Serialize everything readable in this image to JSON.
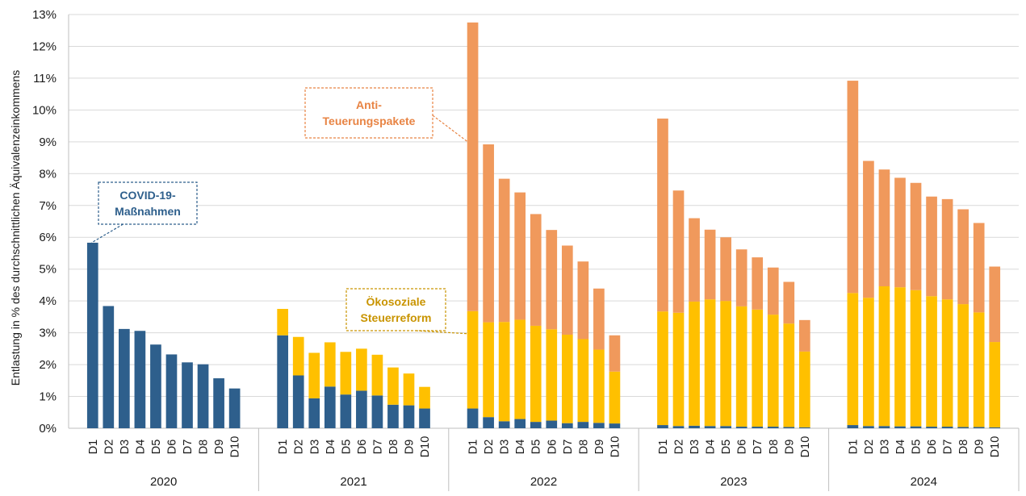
{
  "chart_data": {
    "type": "bar",
    "stacked": true,
    "ylabel": "Entlastung in % des durchschnittlichen Äquivalenzeinkommens",
    "ylim": [
      0,
      13
    ],
    "yticks": [
      "0%",
      "1%",
      "2%",
      "3%",
      "4%",
      "5%",
      "6%",
      "7%",
      "8%",
      "9%",
      "10%",
      "11%",
      "12%",
      "13%"
    ],
    "grid": true,
    "categories": [
      "D1",
      "D2",
      "D3",
      "D4",
      "D5",
      "D6",
      "D7",
      "D8",
      "D9",
      "D10"
    ],
    "groups": [
      "2020",
      "2021",
      "2022",
      "2023",
      "2024"
    ],
    "colors": {
      "covid": "#2E5F8C",
      "oeko": "#FFC000",
      "anti": "#F0995C",
      "covid_text": "#2E5F8C",
      "oeko_text": "#C99400",
      "anti_text": "#E88444"
    },
    "series": [
      {
        "name": "COVID-19-Maßnahmen",
        "key": "covid",
        "values": {
          "2020": [
            5.83,
            3.84,
            3.12,
            3.06,
            2.63,
            2.32,
            2.07,
            2.01,
            1.57,
            1.25
          ],
          "2021": [
            2.92,
            1.66,
            0.94,
            1.31,
            1.06,
            1.18,
            1.03,
            0.74,
            0.72,
            0.62
          ],
          "2022": [
            0.62,
            0.35,
            0.22,
            0.29,
            0.2,
            0.24,
            0.16,
            0.2,
            0.17,
            0.15
          ],
          "2023": [
            0.1,
            0.07,
            0.08,
            0.07,
            0.07,
            0.05,
            0.05,
            0.05,
            0.04,
            0.03
          ],
          "2024": [
            0.1,
            0.07,
            0.07,
            0.06,
            0.06,
            0.05,
            0.05,
            0.04,
            0.04,
            0.03
          ]
        }
      },
      {
        "name": "Ökosoziale Steuerreform",
        "key": "oeko",
        "values": {
          "2020": [
            0,
            0,
            0,
            0,
            0,
            0,
            0,
            0,
            0,
            0
          ],
          "2021": [
            0.83,
            1.21,
            1.43,
            1.39,
            1.34,
            1.32,
            1.28,
            1.17,
            1.0,
            0.68
          ],
          "2022": [
            3.06,
            2.98,
            3.12,
            3.12,
            3.02,
            2.87,
            2.78,
            2.6,
            2.3,
            1.63
          ],
          "2023": [
            3.57,
            3.56,
            3.9,
            3.98,
            3.93,
            3.78,
            3.68,
            3.52,
            3.25,
            2.38
          ],
          "2024": [
            4.15,
            4.03,
            4.39,
            4.37,
            4.28,
            4.1,
            4.0,
            3.86,
            3.6,
            2.68
          ]
        }
      },
      {
        "name": "Anti-Teuerungspakete",
        "key": "anti",
        "values": {
          "2020": [
            0,
            0,
            0,
            0,
            0,
            0,
            0,
            0,
            0,
            0
          ],
          "2021": [
            0,
            0,
            0,
            0,
            0,
            0,
            0,
            0,
            0,
            0
          ],
          "2022": [
            9.07,
            5.59,
            4.5,
            4.0,
            3.51,
            3.12,
            2.8,
            2.44,
            1.92,
            1.14
          ],
          "2023": [
            6.06,
            3.84,
            2.62,
            2.19,
            2.0,
            1.79,
            1.64,
            1.48,
            1.31,
            0.99
          ],
          "2024": [
            6.67,
            4.3,
            3.67,
            3.44,
            3.37,
            3.13,
            3.15,
            2.98,
            2.81,
            2.37
          ]
        }
      }
    ],
    "annotations": [
      {
        "key": "covid",
        "lines": [
          "COVID-19-",
          "Maßnahmen"
        ]
      },
      {
        "key": "oeko",
        "lines": [
          "Ökosoziale",
          "Steuerreform"
        ]
      },
      {
        "key": "anti",
        "lines": [
          "Anti-",
          "Teuerungspakete"
        ]
      }
    ]
  }
}
